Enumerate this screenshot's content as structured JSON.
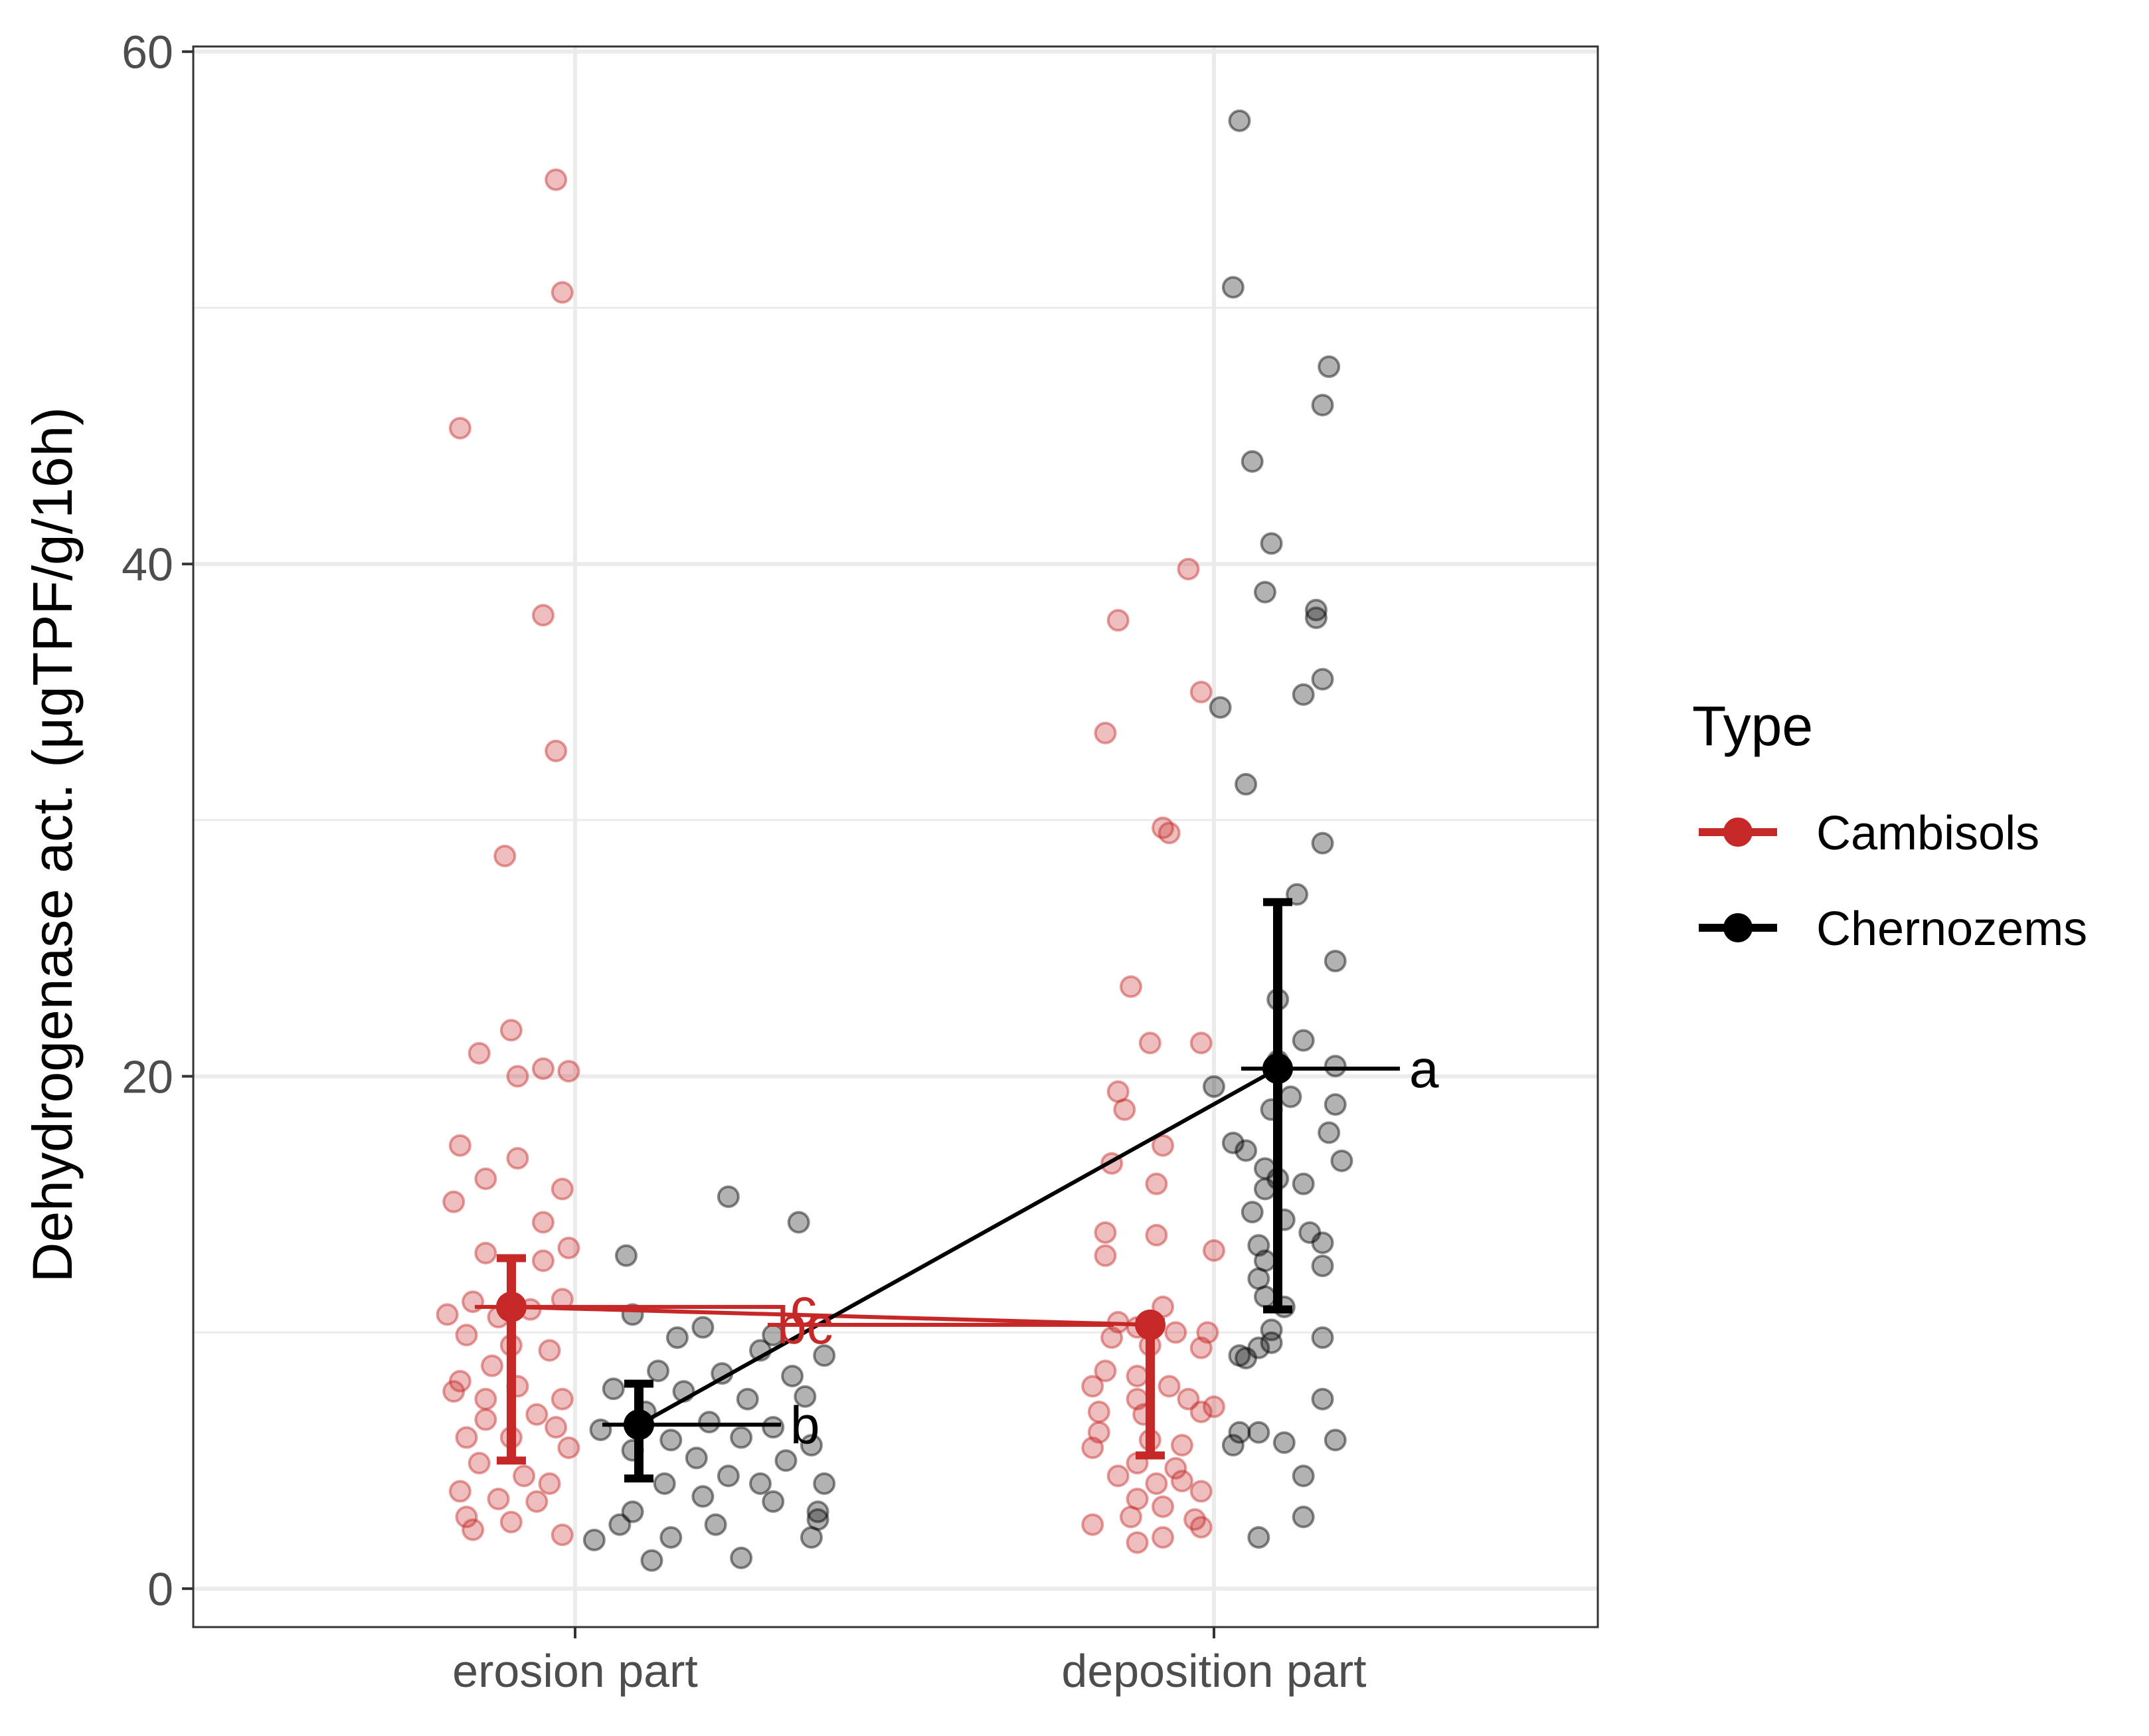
{
  "chart_data": {
    "type": "scatter",
    "title": "",
    "xlabel": "",
    "ylabel": "Dehydrogenase act. (μgTPF/g/16h)",
    "categories": [
      "erosion part",
      "deposition part"
    ],
    "ylim": [
      -1.5,
      60.2
    ],
    "yticks": [
      0,
      20,
      40,
      60
    ],
    "grid": true,
    "legend": {
      "title": "Type",
      "position": "right"
    },
    "series": [
      {
        "name": "Cambisols",
        "color": "#c62828",
        "means": [
          11.0,
          10.3
        ],
        "err_low": [
          5.0,
          5.2
        ],
        "err_high": [
          12.9,
          10.4
        ],
        "letters": [
          "c",
          "bc"
        ],
        "points": [
          {
            "c": 0,
            "dx": -0.18,
            "y": 45.3
          },
          {
            "c": 0,
            "dx": -0.03,
            "y": 55.0
          },
          {
            "c": 0,
            "dx": -0.02,
            "y": 50.6
          },
          {
            "c": 0,
            "dx": -0.05,
            "y": 38.0
          },
          {
            "c": 0,
            "dx": -0.03,
            "y": 32.7
          },
          {
            "c": 0,
            "dx": -0.11,
            "y": 28.6
          },
          {
            "c": 0,
            "dx": -0.1,
            "y": 21.8
          },
          {
            "c": 0,
            "dx": -0.15,
            "y": 20.9
          },
          {
            "c": 0,
            "dx": -0.09,
            "y": 20.0
          },
          {
            "c": 0,
            "dx": -0.05,
            "y": 20.3
          },
          {
            "c": 0,
            "dx": -0.01,
            "y": 20.2
          },
          {
            "c": 0,
            "dx": -0.18,
            "y": 17.3
          },
          {
            "c": 0,
            "dx": -0.09,
            "y": 16.8
          },
          {
            "c": 0,
            "dx": -0.14,
            "y": 16.0
          },
          {
            "c": 0,
            "dx": -0.02,
            "y": 15.6
          },
          {
            "c": 0,
            "dx": -0.19,
            "y": 15.1
          },
          {
            "c": 0,
            "dx": -0.05,
            "y": 14.3
          },
          {
            "c": 0,
            "dx": -0.14,
            "y": 13.1
          },
          {
            "c": 0,
            "dx": -0.01,
            "y": 13.3
          },
          {
            "c": 0,
            "dx": -0.05,
            "y": 12.8
          },
          {
            "c": 0,
            "dx": -0.16,
            "y": 11.2
          },
          {
            "c": 0,
            "dx": -0.02,
            "y": 11.3
          },
          {
            "c": 0,
            "dx": -0.2,
            "y": 10.7
          },
          {
            "c": 0,
            "dx": -0.12,
            "y": 10.6
          },
          {
            "c": 0,
            "dx": -0.07,
            "y": 10.9
          },
          {
            "c": 0,
            "dx": -0.17,
            "y": 9.9
          },
          {
            "c": 0,
            "dx": -0.1,
            "y": 9.5
          },
          {
            "c": 0,
            "dx": -0.04,
            "y": 9.3
          },
          {
            "c": 0,
            "dx": -0.13,
            "y": 8.7
          },
          {
            "c": 0,
            "dx": -0.18,
            "y": 8.1
          },
          {
            "c": 0,
            "dx": -0.09,
            "y": 7.9
          },
          {
            "c": 0,
            "dx": -0.14,
            "y": 7.4
          },
          {
            "c": 0,
            "dx": -0.02,
            "y": 7.4
          },
          {
            "c": 0,
            "dx": -0.19,
            "y": 7.7
          },
          {
            "c": 0,
            "dx": -0.06,
            "y": 6.8
          },
          {
            "c": 0,
            "dx": -0.14,
            "y": 6.6
          },
          {
            "c": 0,
            "dx": -0.03,
            "y": 6.3
          },
          {
            "c": 0,
            "dx": -0.17,
            "y": 5.9
          },
          {
            "c": 0,
            "dx": -0.1,
            "y": 5.9
          },
          {
            "c": 0,
            "dx": -0.01,
            "y": 5.5
          },
          {
            "c": 0,
            "dx": -0.15,
            "y": 4.9
          },
          {
            "c": 0,
            "dx": -0.08,
            "y": 4.4
          },
          {
            "c": 0,
            "dx": -0.04,
            "y": 4.1
          },
          {
            "c": 0,
            "dx": -0.18,
            "y": 3.8
          },
          {
            "c": 0,
            "dx": -0.12,
            "y": 3.5
          },
          {
            "c": 0,
            "dx": -0.06,
            "y": 3.4
          },
          {
            "c": 0,
            "dx": -0.17,
            "y": 2.8
          },
          {
            "c": 0,
            "dx": -0.1,
            "y": 2.6
          },
          {
            "c": 0,
            "dx": -0.16,
            "y": 2.3
          },
          {
            "c": 0,
            "dx": -0.02,
            "y": 2.1
          },
          {
            "c": 1,
            "dx": -0.15,
            "y": 37.8
          },
          {
            "c": 1,
            "dx": -0.04,
            "y": 39.8
          },
          {
            "c": 1,
            "dx": -0.02,
            "y": 35.0
          },
          {
            "c": 1,
            "dx": -0.17,
            "y": 33.4
          },
          {
            "c": 1,
            "dx": -0.08,
            "y": 29.7
          },
          {
            "c": 1,
            "dx": -0.07,
            "y": 29.5
          },
          {
            "c": 1,
            "dx": -0.13,
            "y": 23.5
          },
          {
            "c": 1,
            "dx": -0.1,
            "y": 21.3
          },
          {
            "c": 1,
            "dx": -0.02,
            "y": 21.3
          },
          {
            "c": 1,
            "dx": -0.15,
            "y": 19.4
          },
          {
            "c": 1,
            "dx": -0.14,
            "y": 18.7
          },
          {
            "c": 1,
            "dx": -0.08,
            "y": 17.3
          },
          {
            "c": 1,
            "dx": -0.16,
            "y": 16.6
          },
          {
            "c": 1,
            "dx": -0.09,
            "y": 15.8
          },
          {
            "c": 1,
            "dx": -0.17,
            "y": 13.9
          },
          {
            "c": 1,
            "dx": -0.09,
            "y": 13.8
          },
          {
            "c": 1,
            "dx": -0.17,
            "y": 13.0
          },
          {
            "c": 1,
            "dx": 0.0,
            "y": 13.2
          },
          {
            "c": 1,
            "dx": -0.08,
            "y": 11.0
          },
          {
            "c": 1,
            "dx": -0.15,
            "y": 10.4
          },
          {
            "c": 1,
            "dx": -0.12,
            "y": 10.2
          },
          {
            "c": 1,
            "dx": -0.06,
            "y": 10.0
          },
          {
            "c": 1,
            "dx": -0.01,
            "y": 10.0
          },
          {
            "c": 1,
            "dx": -0.16,
            "y": 9.8
          },
          {
            "c": 1,
            "dx": -0.1,
            "y": 9.5
          },
          {
            "c": 1,
            "dx": -0.02,
            "y": 9.4
          },
          {
            "c": 1,
            "dx": -0.17,
            "y": 8.5
          },
          {
            "c": 1,
            "dx": -0.12,
            "y": 8.3
          },
          {
            "c": 1,
            "dx": -0.19,
            "y": 7.9
          },
          {
            "c": 1,
            "dx": -0.07,
            "y": 7.9
          },
          {
            "c": 1,
            "dx": -0.12,
            "y": 7.4
          },
          {
            "c": 1,
            "dx": -0.04,
            "y": 7.4
          },
          {
            "c": 1,
            "dx": 0.0,
            "y": 7.1
          },
          {
            "c": 1,
            "dx": -0.18,
            "y": 6.9
          },
          {
            "c": 1,
            "dx": -0.11,
            "y": 6.8
          },
          {
            "c": 1,
            "dx": -0.02,
            "y": 6.9
          },
          {
            "c": 1,
            "dx": -0.18,
            "y": 6.1
          },
          {
            "c": 1,
            "dx": -0.1,
            "y": 5.8
          },
          {
            "c": 1,
            "dx": -0.05,
            "y": 5.6
          },
          {
            "c": 1,
            "dx": -0.19,
            "y": 5.5
          },
          {
            "c": 1,
            "dx": -0.12,
            "y": 4.9
          },
          {
            "c": 1,
            "dx": -0.06,
            "y": 4.7
          },
          {
            "c": 1,
            "dx": -0.15,
            "y": 4.4
          },
          {
            "c": 1,
            "dx": -0.09,
            "y": 4.1
          },
          {
            "c": 1,
            "dx": -0.05,
            "y": 4.2
          },
          {
            "c": 1,
            "dx": -0.02,
            "y": 3.8
          },
          {
            "c": 1,
            "dx": -0.12,
            "y": 3.5
          },
          {
            "c": 1,
            "dx": -0.08,
            "y": 3.2
          },
          {
            "c": 1,
            "dx": -0.13,
            "y": 2.8
          },
          {
            "c": 1,
            "dx": -0.03,
            "y": 2.7
          },
          {
            "c": 1,
            "dx": -0.19,
            "y": 2.5
          },
          {
            "c": 1,
            "dx": -0.02,
            "y": 2.4
          },
          {
            "c": 1,
            "dx": -0.08,
            "y": 2.0
          },
          {
            "c": 1,
            "dx": -0.12,
            "y": 1.8
          }
        ]
      },
      {
        "name": "Chernozems",
        "color": "#000000",
        "means": [
          6.4,
          20.3
        ],
        "err_low": [
          4.3,
          10.9
        ],
        "err_high": [
          8.0,
          26.8
        ],
        "letters": [
          "b",
          "a"
        ],
        "points": [
          {
            "c": 0,
            "dx": 0.24,
            "y": 15.3
          },
          {
            "c": 0,
            "dx": 0.35,
            "y": 14.3
          },
          {
            "c": 0,
            "dx": 0.08,
            "y": 13.0
          },
          {
            "c": 0,
            "dx": 0.09,
            "y": 10.7
          },
          {
            "c": 0,
            "dx": 0.2,
            "y": 10.2
          },
          {
            "c": 0,
            "dx": 0.16,
            "y": 9.8
          },
          {
            "c": 0,
            "dx": 0.31,
            "y": 9.9
          },
          {
            "c": 0,
            "dx": 0.29,
            "y": 9.3
          },
          {
            "c": 0,
            "dx": 0.39,
            "y": 9.1
          },
          {
            "c": 0,
            "dx": 0.13,
            "y": 8.5
          },
          {
            "c": 0,
            "dx": 0.23,
            "y": 8.4
          },
          {
            "c": 0,
            "dx": 0.34,
            "y": 8.3
          },
          {
            "c": 0,
            "dx": 0.06,
            "y": 7.8
          },
          {
            "c": 0,
            "dx": 0.17,
            "y": 7.7
          },
          {
            "c": 0,
            "dx": 0.27,
            "y": 7.4
          },
          {
            "c": 0,
            "dx": 0.36,
            "y": 7.5
          },
          {
            "c": 0,
            "dx": 0.11,
            "y": 6.9
          },
          {
            "c": 0,
            "dx": 0.21,
            "y": 6.5
          },
          {
            "c": 0,
            "dx": 0.31,
            "y": 6.3
          },
          {
            "c": 0,
            "dx": 0.04,
            "y": 6.2
          },
          {
            "c": 0,
            "dx": 0.15,
            "y": 5.8
          },
          {
            "c": 0,
            "dx": 0.26,
            "y": 5.9
          },
          {
            "c": 0,
            "dx": 0.37,
            "y": 5.6
          },
          {
            "c": 0,
            "dx": 0.09,
            "y": 5.4
          },
          {
            "c": 0,
            "dx": 0.19,
            "y": 5.1
          },
          {
            "c": 0,
            "dx": 0.33,
            "y": 5.0
          },
          {
            "c": 0,
            "dx": 0.24,
            "y": 4.4
          },
          {
            "c": 0,
            "dx": 0.14,
            "y": 4.1
          },
          {
            "c": 0,
            "dx": 0.29,
            "y": 4.1
          },
          {
            "c": 0,
            "dx": 0.39,
            "y": 4.1
          },
          {
            "c": 0,
            "dx": 0.2,
            "y": 3.6
          },
          {
            "c": 0,
            "dx": 0.31,
            "y": 3.4
          },
          {
            "c": 0,
            "dx": 0.09,
            "y": 3.0
          },
          {
            "c": 0,
            "dx": 0.38,
            "y": 3.0
          },
          {
            "c": 0,
            "dx": 0.38,
            "y": 2.7
          },
          {
            "c": 0,
            "dx": 0.07,
            "y": 2.5
          },
          {
            "c": 0,
            "dx": 0.22,
            "y": 2.5
          },
          {
            "c": 0,
            "dx": 0.15,
            "y": 2.0
          },
          {
            "c": 0,
            "dx": 0.03,
            "y": 1.9
          },
          {
            "c": 0,
            "dx": 0.37,
            "y": 2.0
          },
          {
            "c": 0,
            "dx": 0.12,
            "y": 1.1
          },
          {
            "c": 0,
            "dx": 0.26,
            "y": 1.2
          },
          {
            "c": 1,
            "dx": 0.04,
            "y": 57.3
          },
          {
            "c": 1,
            "dx": 0.03,
            "y": 50.8
          },
          {
            "c": 1,
            "dx": 0.18,
            "y": 47.7
          },
          {
            "c": 1,
            "dx": 0.17,
            "y": 46.2
          },
          {
            "c": 1,
            "dx": 0.06,
            "y": 44.0
          },
          {
            "c": 1,
            "dx": 0.09,
            "y": 40.8
          },
          {
            "c": 1,
            "dx": 0.08,
            "y": 38.9
          },
          {
            "c": 1,
            "dx": 0.16,
            "y": 38.2
          },
          {
            "c": 1,
            "dx": 0.16,
            "y": 37.9
          },
          {
            "c": 1,
            "dx": 0.17,
            "y": 35.5
          },
          {
            "c": 1,
            "dx": 0.14,
            "y": 34.9
          },
          {
            "c": 1,
            "dx": 0.01,
            "y": 34.4
          },
          {
            "c": 1,
            "dx": 0.05,
            "y": 31.4
          },
          {
            "c": 1,
            "dx": 0.17,
            "y": 29.1
          },
          {
            "c": 1,
            "dx": 0.13,
            "y": 27.1
          },
          {
            "c": 1,
            "dx": 0.19,
            "y": 24.5
          },
          {
            "c": 1,
            "dx": 0.1,
            "y": 23.0
          },
          {
            "c": 1,
            "dx": 0.14,
            "y": 21.4
          },
          {
            "c": 1,
            "dx": 0.1,
            "y": 20.6
          },
          {
            "c": 1,
            "dx": 0.19,
            "y": 20.4
          },
          {
            "c": 1,
            "dx": 0.0,
            "y": 19.6
          },
          {
            "c": 1,
            "dx": 0.12,
            "y": 19.2
          },
          {
            "c": 1,
            "dx": 0.19,
            "y": 18.9
          },
          {
            "c": 1,
            "dx": 0.09,
            "y": 18.7
          },
          {
            "c": 1,
            "dx": 0.18,
            "y": 17.8
          },
          {
            "c": 1,
            "dx": 0.03,
            "y": 17.4
          },
          {
            "c": 1,
            "dx": 0.05,
            "y": 17.1
          },
          {
            "c": 1,
            "dx": 0.2,
            "y": 16.7
          },
          {
            "c": 1,
            "dx": 0.08,
            "y": 16.4
          },
          {
            "c": 1,
            "dx": 0.1,
            "y": 16.0
          },
          {
            "c": 1,
            "dx": 0.14,
            "y": 15.8
          },
          {
            "c": 1,
            "dx": 0.08,
            "y": 15.6
          },
          {
            "c": 1,
            "dx": 0.06,
            "y": 14.7
          },
          {
            "c": 1,
            "dx": 0.11,
            "y": 14.4
          },
          {
            "c": 1,
            "dx": 0.15,
            "y": 13.9
          },
          {
            "c": 1,
            "dx": 0.17,
            "y": 13.5
          },
          {
            "c": 1,
            "dx": 0.07,
            "y": 13.4
          },
          {
            "c": 1,
            "dx": 0.08,
            "y": 12.8
          },
          {
            "c": 1,
            "dx": 0.17,
            "y": 12.6
          },
          {
            "c": 1,
            "dx": 0.07,
            "y": 12.1
          },
          {
            "c": 1,
            "dx": 0.08,
            "y": 11.4
          },
          {
            "c": 1,
            "dx": 0.11,
            "y": 11.0
          },
          {
            "c": 1,
            "dx": 0.09,
            "y": 10.1
          },
          {
            "c": 1,
            "dx": 0.17,
            "y": 9.8
          },
          {
            "c": 1,
            "dx": 0.09,
            "y": 9.6
          },
          {
            "c": 1,
            "dx": 0.07,
            "y": 9.4
          },
          {
            "c": 1,
            "dx": 0.04,
            "y": 9.1
          },
          {
            "c": 1,
            "dx": 0.05,
            "y": 9.0
          },
          {
            "c": 1,
            "dx": 0.17,
            "y": 7.4
          },
          {
            "c": 1,
            "dx": 0.04,
            "y": 6.1
          },
          {
            "c": 1,
            "dx": 0.07,
            "y": 6.1
          },
          {
            "c": 1,
            "dx": 0.03,
            "y": 5.6
          },
          {
            "c": 1,
            "dx": 0.11,
            "y": 5.7
          },
          {
            "c": 1,
            "dx": 0.19,
            "y": 5.8
          },
          {
            "c": 1,
            "dx": 0.14,
            "y": 4.4
          },
          {
            "c": 1,
            "dx": 0.14,
            "y": 2.8
          },
          {
            "c": 1,
            "dx": 0.07,
            "y": 2.0
          }
        ]
      }
    ]
  }
}
